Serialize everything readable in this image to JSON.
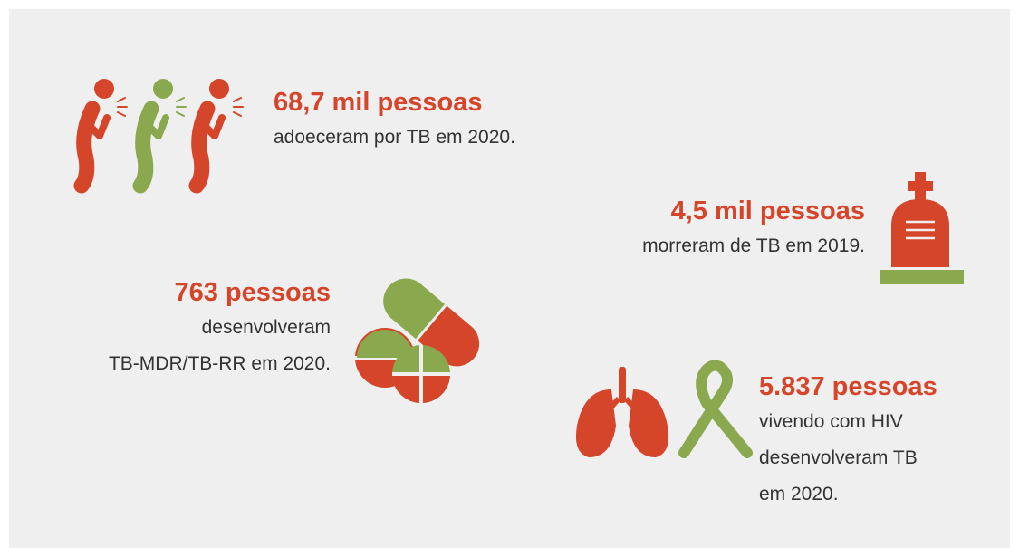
{
  "stats": [
    {
      "headline": "68,7 mil pessoas",
      "lines": [
        "adoeceram por TB em 2020."
      ]
    },
    {
      "headline": "4,5 mil pessoas",
      "lines": [
        "morreram de TB em 2019."
      ]
    },
    {
      "headline": "763 pessoas",
      "lines": [
        "desenvolveram",
        "TB-MDR/TB-RR em 2020."
      ]
    },
    {
      "headline": "5.837 pessoas",
      "lines": [
        "vivendo com HIV",
        "desenvolveram TB",
        "em 2020."
      ]
    }
  ]
}
